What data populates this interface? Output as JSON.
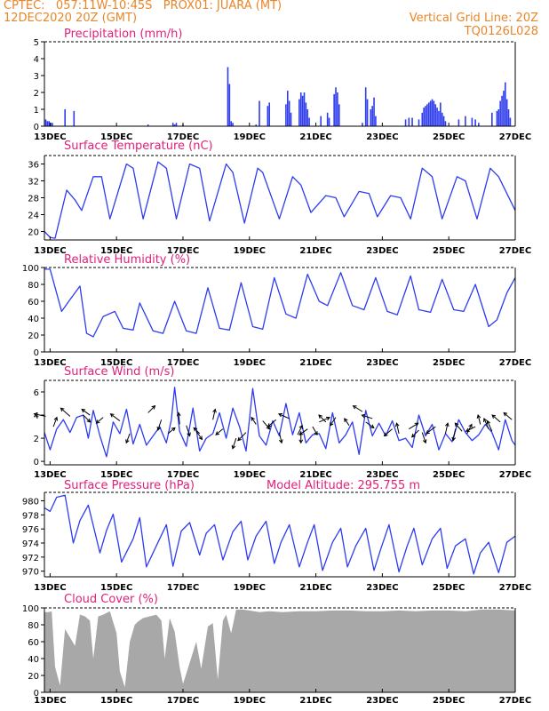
{
  "header": {
    "line1_left": "CPTEC:   057:11W-10:45S   PROX01: JUARA (MT)",
    "line2_left": "12DEC2020 20Z (GMT)",
    "line1_right": "Vertical Grid Line: 20Z",
    "line2_right": "TQ0126L028"
  },
  "colors": {
    "line": "#2e3cf0",
    "bar": "#2e3cf0",
    "title": "#e0207a",
    "header": "#e8862a",
    "cloud": "#a8a8a8"
  },
  "x_axis": {
    "tick_labels": [
      "13DEC",
      "15DEC",
      "17DEC",
      "19DEC",
      "21DEC",
      "23DEC",
      "25DEC",
      "27DEC"
    ],
    "start_day": 12.83,
    "end_day": 27.0
  },
  "chart_data": [
    {
      "type": "bar",
      "title": "Precipitation (mm/h)",
      "ylim": [
        0,
        5
      ],
      "yticks": [
        0,
        1,
        2,
        3,
        4,
        5
      ],
      "series": [
        {
          "x": [
            12.87,
            12.92,
            12.97,
            13.02,
            13.07,
            13.45,
            13.72,
            15.95,
            16.7,
            16.75,
            16.8,
            17.0,
            18.35,
            18.4,
            18.45,
            18.5,
            19.2,
            19.3,
            19.55,
            19.6,
            20.1,
            20.15,
            20.2,
            20.25,
            20.5,
            20.55,
            20.6,
            20.65,
            20.7,
            20.75,
            20.8,
            21.15,
            21.35,
            21.4,
            21.55,
            21.6,
            21.65,
            21.7,
            22.4,
            22.5,
            22.55,
            22.65,
            22.7,
            22.75,
            22.8,
            23.7,
            23.8,
            23.9,
            24.1,
            24.2,
            24.25,
            24.3,
            24.35,
            24.4,
            24.45,
            24.5,
            24.55,
            24.6,
            24.65,
            24.7,
            24.75,
            24.8,
            24.85,
            24.9,
            25.3,
            25.5,
            25.7,
            25.8,
            25.9,
            26.3,
            26.45,
            26.5,
            26.55,
            26.6,
            26.65,
            26.7,
            26.75,
            26.8,
            26.85
          ],
          "values": [
            0.4,
            0.3,
            0.3,
            0.2,
            0.2,
            1.0,
            0.9,
            0.1,
            0.2,
            0.1,
            0.2,
            0.1,
            3.5,
            2.5,
            0.3,
            0.2,
            0.1,
            1.5,
            1.2,
            1.4,
            1.3,
            2.1,
            1.5,
            0.8,
            1.6,
            2.0,
            1.8,
            2.0,
            1.4,
            1.0,
            0.5,
            0.6,
            0.8,
            0.5,
            1.9,
            2.3,
            2.0,
            1.3,
            0.2,
            2.3,
            1.6,
            1.0,
            1.2,
            1.7,
            0.6,
            0.4,
            0.5,
            0.5,
            0.4,
            0.8,
            1.1,
            1.2,
            1.3,
            1.4,
            1.5,
            1.6,
            1.5,
            1.3,
            1.1,
            0.9,
            1.4,
            0.8,
            0.6,
            0.3,
            0.4,
            0.6,
            0.5,
            0.4,
            0.2,
            0.8,
            0.9,
            1.0,
            1.5,
            1.8,
            2.1,
            2.6,
            1.6,
            1.0,
            0.5
          ]
        }
      ]
    },
    {
      "type": "line",
      "title": "Surface Temperature (nC)",
      "ylim": [
        18,
        38
      ],
      "yticks": [
        20,
        24,
        28,
        32,
        36
      ],
      "series": [
        {
          "x": [
            12.83,
            13.0,
            13.15,
            13.5,
            13.75,
            13.95,
            14.3,
            14.55,
            14.8,
            15.3,
            15.5,
            15.8,
            16.25,
            16.5,
            16.8,
            17.2,
            17.5,
            17.8,
            18.3,
            18.5,
            18.85,
            19.25,
            19.4,
            19.9,
            20.3,
            20.55,
            20.85,
            21.3,
            21.6,
            21.85,
            22.3,
            22.6,
            22.85,
            23.25,
            23.55,
            23.85,
            24.2,
            24.5,
            24.8,
            25.25,
            25.5,
            25.85,
            26.25,
            26.5,
            27.0
          ],
          "values": [
            20,
            18.6,
            18.4,
            29.8,
            27.5,
            25,
            33,
            33,
            23,
            36,
            35,
            23,
            36.5,
            35,
            23,
            36,
            35,
            22.5,
            36,
            34,
            22,
            35,
            34,
            23,
            33,
            31,
            24.5,
            28.5,
            28,
            23.5,
            29.5,
            29,
            23.5,
            28.5,
            28,
            23,
            35,
            33,
            23,
            33,
            32,
            23,
            35,
            33,
            25
          ]
        }
      ]
    },
    {
      "type": "line",
      "title": "Relative Humidity (%)",
      "ylim": [
        0,
        100
      ],
      "yticks": [
        0,
        20,
        40,
        60,
        80,
        100
      ],
      "series": [
        {
          "x": [
            12.83,
            13.0,
            13.35,
            13.6,
            13.9,
            14.1,
            14.3,
            14.6,
            14.95,
            15.2,
            15.5,
            15.7,
            16.1,
            16.4,
            16.75,
            17.1,
            17.4,
            17.75,
            18.1,
            18.4,
            18.75,
            19.1,
            19.4,
            19.75,
            20.1,
            20.4,
            20.75,
            21.1,
            21.35,
            21.75,
            22.1,
            22.45,
            22.8,
            23.15,
            23.45,
            23.85,
            24.1,
            24.45,
            24.8,
            25.15,
            25.45,
            25.8,
            26.2,
            26.45,
            26.75,
            27.0
          ],
          "values": [
            98,
            98,
            48,
            62,
            78,
            22,
            18,
            42,
            48,
            28,
            26,
            58,
            25,
            22,
            60,
            25,
            22,
            76,
            28,
            26,
            82,
            30,
            27,
            88,
            45,
            40,
            92,
            60,
            55,
            94,
            55,
            50,
            88,
            48,
            44,
            90,
            50,
            47,
            86,
            50,
            48,
            80,
            30,
            38,
            70,
            88
          ]
        }
      ]
    },
    {
      "type": "line",
      "title": "Surface Wind (m/s)",
      "ylim": [
        -0.3,
        7
      ],
      "yticks": [
        0,
        2,
        4,
        6
      ],
      "series": [
        {
          "x": [
            12.83,
            13.0,
            13.2,
            13.4,
            13.6,
            13.8,
            14.0,
            14.15,
            14.3,
            14.5,
            14.7,
            14.9,
            15.1,
            15.3,
            15.5,
            15.7,
            15.9,
            16.1,
            16.3,
            16.5,
            16.65,
            16.75,
            16.9,
            17.1,
            17.3,
            17.5,
            17.7,
            17.9,
            18.1,
            18.3,
            18.5,
            18.7,
            18.9,
            19.1,
            19.3,
            19.5,
            19.7,
            19.9,
            20.1,
            20.3,
            20.5,
            20.7,
            20.9,
            21.1,
            21.3,
            21.5,
            21.7,
            21.9,
            22.1,
            22.3,
            22.5,
            22.7,
            22.9,
            23.1,
            23.3,
            23.5,
            23.7,
            23.9,
            24.1,
            24.3,
            24.5,
            24.7,
            24.9,
            25.1,
            25.3,
            25.5,
            25.7,
            25.9,
            26.1,
            26.3,
            26.5,
            26.7,
            26.9,
            27.0
          ],
          "values": [
            2.5,
            1.0,
            2.8,
            3.6,
            2.5,
            3.8,
            4.0,
            2.0,
            4.4,
            2.2,
            0.4,
            3.4,
            2.4,
            4.5,
            1.5,
            3.2,
            1.4,
            2.2,
            3.0,
            1.6,
            3.6,
            6.4,
            2.6,
            1.3,
            4.6,
            0.9,
            2.0,
            2.4,
            4.2,
            2.0,
            4.6,
            3.0,
            0.9,
            6.3,
            2.2,
            1.4,
            3.5,
            2.2,
            5.0,
            2.3,
            4.2,
            1.6,
            2.3,
            2.4,
            1.1,
            4.2,
            1.6,
            2.3,
            3.4,
            0.6,
            4.4,
            2.2,
            3.3,
            2.2,
            3.5,
            1.8,
            2.0,
            1.2,
            4.0,
            2.2,
            3.2,
            1.0,
            2.4,
            1.7,
            3.6,
            2.5,
            1.8,
            2.3,
            3.2,
            2.5,
            1.0,
            3.6,
            1.8,
            1.4
          ]
        }
      ],
      "wind_vectors": {
        "x": [
          12.87,
          13.1,
          13.6,
          14.0,
          14.2,
          14.6,
          15.1,
          15.4,
          15.95,
          16.35,
          16.55,
          16.9,
          17.1,
          17.4,
          17.5,
          17.9,
          18.2,
          18.6,
          18.9,
          19.2,
          19.4,
          19.8,
          19.9,
          20.2,
          20.45,
          20.55,
          20.75,
          20.9,
          21.1,
          21.3,
          21.6,
          22.0,
          22.4,
          22.5,
          22.7,
          23.3,
          23.5,
          23.8,
          24.1,
          24.2,
          24.6,
          24.9,
          25.2,
          25.4,
          25.55,
          25.8,
          25.95,
          26.2,
          26.3,
          26.55,
          26.9
        ],
        "level": [
          3.9,
          3.0,
          3.9,
          4.0,
          4.0,
          3.8,
          3.5,
          2.4,
          4.2,
          3.6,
          2.4,
          3.2,
          3.1,
          2.6,
          2.4,
          3.6,
          2.8,
          2.0,
          2.5,
          3.2,
          3.5,
          3.6,
          2.5,
          3.7,
          2.3,
          2.6,
          2.8,
          3.0,
          3.4,
          3.4,
          3.8,
          3.1,
          4.3,
          3.4,
          3.7,
          2.8,
          2.4,
          2.8,
          2.7,
          2.5,
          3.0,
          2.4,
          2.8,
          2.6,
          2.4,
          3.0,
          3.2,
          2.8,
          2.6,
          3.4,
          3.6
        ],
        "u": [
          -1.0,
          0.3,
          -0.8,
          0.6,
          -0.7,
          -0.6,
          -0.8,
          -0.3,
          0.6,
          -0.3,
          0.6,
          -0.1,
          0.3,
          0.5,
          -0.5,
          0.2,
          -0.6,
          -0.3,
          -0.7,
          -0.4,
          0.6,
          -0.7,
          0.2,
          -0.9,
          0.4,
          0.0,
          -0.7,
          0.4,
          0.9,
          -0.6,
          -0.5,
          -0.4,
          -0.8,
          0.7,
          -0.9,
          -0.7,
          -0.2,
          0.8,
          -0.6,
          0.3,
          -0.8,
          0.2,
          -0.2,
          -0.6,
          0.4,
          -0.8,
          -0.2,
          -0.4,
          -0.4,
          -0.7,
          -0.7
        ],
        "v": [
          0.2,
          0.8,
          0.7,
          -0.6,
          0.5,
          -0.5,
          0.6,
          -0.8,
          0.6,
          -0.9,
          0.5,
          1.0,
          -0.9,
          -0.7,
          0.5,
          0.9,
          -0.5,
          -0.9,
          -0.7,
          0.6,
          -0.7,
          -0.6,
          -0.9,
          0.4,
          0.8,
          -1.0,
          -0.5,
          -0.7,
          0.4,
          0.6,
          -0.7,
          0.6,
          0.5,
          -0.5,
          0.3,
          -0.6,
          0.9,
          0.5,
          -0.6,
          -0.9,
          -0.6,
          0.9,
          -1.0,
          0.7,
          0.8,
          -0.4,
          0.8,
          0.9,
          0.9,
          0.6,
          0.6
        ]
      }
    },
    {
      "type": "line",
      "title": "Surface Pressure (hPa)",
      "subtitle": "Model Altitude: 295.755 m",
      "ylim": [
        969.2,
        981.2
      ],
      "yticks": [
        970,
        972,
        974,
        976,
        978,
        980
      ],
      "series": [
        {
          "x": [
            12.83,
            13.0,
            13.2,
            13.45,
            13.7,
            13.9,
            14.15,
            14.5,
            14.7,
            14.9,
            15.15,
            15.5,
            15.7,
            15.9,
            16.2,
            16.5,
            16.7,
            16.95,
            17.2,
            17.5,
            17.7,
            17.95,
            18.2,
            18.5,
            18.75,
            18.95,
            19.2,
            19.5,
            19.75,
            19.95,
            20.2,
            20.5,
            20.75,
            20.95,
            21.2,
            21.5,
            21.75,
            21.95,
            22.2,
            22.5,
            22.75,
            22.95,
            23.2,
            23.5,
            23.75,
            23.95,
            24.2,
            24.5,
            24.75,
            24.95,
            25.2,
            25.5,
            25.75,
            25.95,
            26.2,
            26.5,
            26.75,
            27.0
          ],
          "values": [
            979,
            978.5,
            980.5,
            980.8,
            974,
            977.2,
            979.4,
            972.6,
            975.8,
            978.1,
            971.3,
            974.6,
            977.6,
            970.6,
            973.6,
            976.6,
            970.7,
            975.7,
            976.9,
            972.3,
            975.4,
            976.6,
            971.6,
            975.6,
            977.1,
            971.6,
            975.0,
            977.1,
            971.1,
            974.1,
            976.6,
            970.6,
            974.1,
            976.6,
            970.1,
            974.1,
            976.1,
            970.6,
            973.6,
            976.1,
            970.1,
            973.1,
            976.6,
            969.9,
            973.6,
            976.1,
            970.9,
            974.6,
            976.1,
            970.4,
            973.6,
            974.6,
            969.6,
            972.6,
            974.1,
            969.8,
            974.1,
            975.0
          ]
        }
      ]
    },
    {
      "type": "area",
      "title": "Cloud Cover (%)",
      "ylim": [
        0,
        100
      ],
      "yticks": [
        0,
        20,
        40,
        60,
        80,
        100
      ],
      "series": [
        {
          "x": [
            12.83,
            12.95,
            13.05,
            13.15,
            13.3,
            13.45,
            13.6,
            13.75,
            13.9,
            14.05,
            14.2,
            14.3,
            14.45,
            14.6,
            14.8,
            15.0,
            15.1,
            15.25,
            15.4,
            15.55,
            15.65,
            15.8,
            16.0,
            16.2,
            16.35,
            16.45,
            16.6,
            16.75,
            16.9,
            17.0,
            17.2,
            17.4,
            17.55,
            17.75,
            17.9,
            18.05,
            18.2,
            18.3,
            18.45,
            18.6,
            18.8,
            19.0,
            19.3,
            19.6,
            20.0,
            20.5,
            21.0,
            21.5,
            22.0,
            22.5,
            23.0,
            23.5,
            24.0,
            24.5,
            25.0,
            25.5,
            26.0,
            26.5,
            27.0
          ],
          "values": [
            95,
            95,
            96,
            30,
            8,
            75,
            65,
            55,
            92,
            90,
            85,
            40,
            90,
            92,
            96,
            70,
            25,
            6,
            60,
            80,
            84,
            88,
            90,
            92,
            85,
            40,
            88,
            72,
            30,
            10,
            35,
            60,
            28,
            78,
            82,
            15,
            85,
            92,
            70,
            98,
            98,
            97,
            95,
            96,
            95,
            96,
            96,
            97,
            97,
            96,
            96,
            97,
            96,
            97,
            97,
            96,
            98,
            98,
            97
          ]
        }
      ]
    }
  ]
}
